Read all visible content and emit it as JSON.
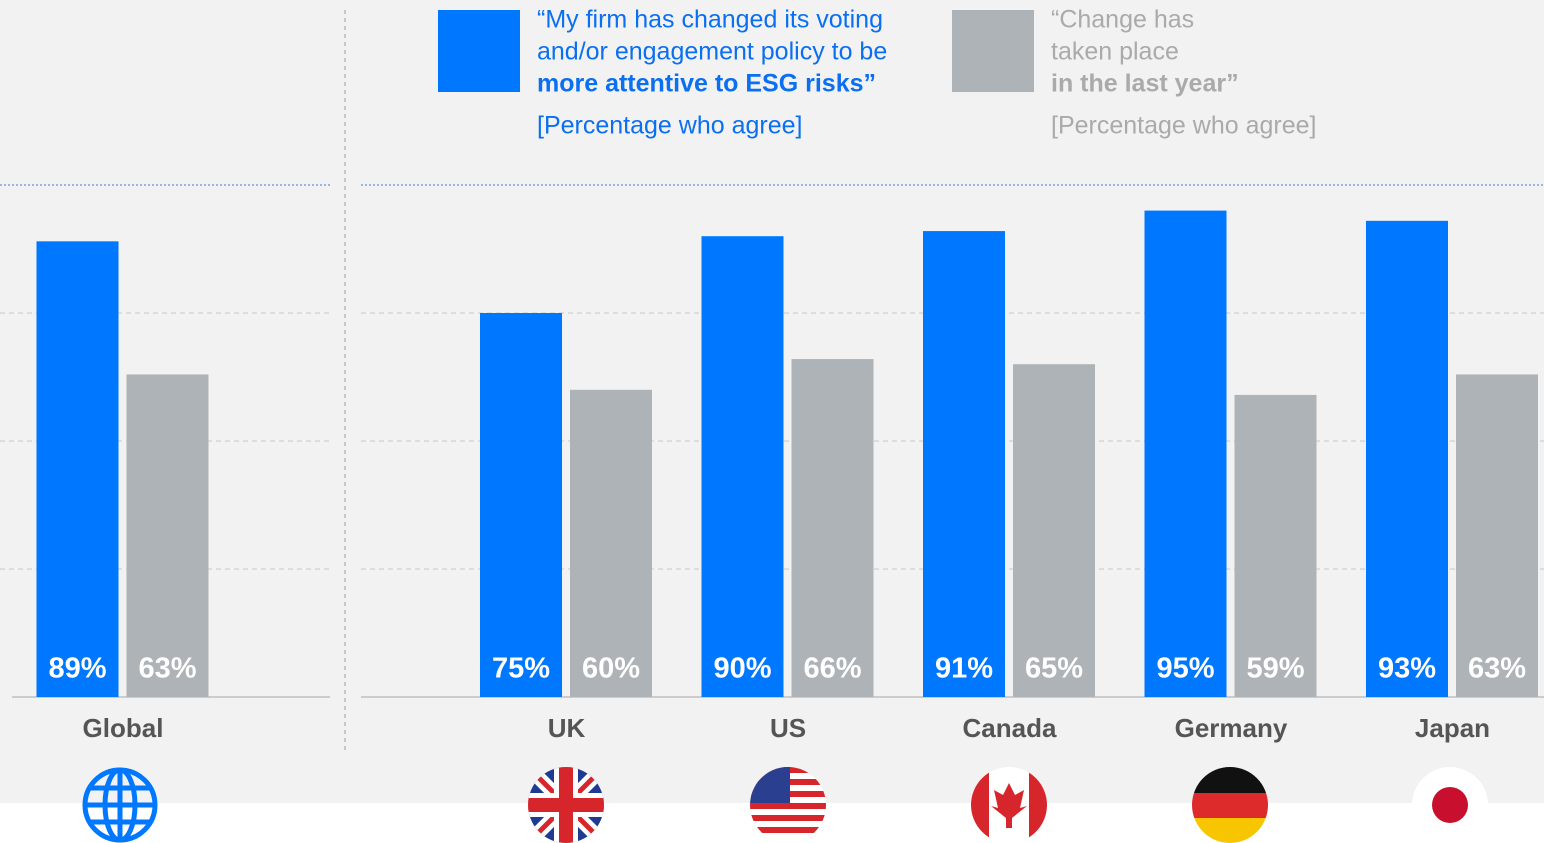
{
  "chart_data": {
    "type": "bar",
    "categories": [
      "Global",
      "UK",
      "US",
      "Canada",
      "Germany",
      "Japan"
    ],
    "series": [
      {
        "name": [
          "“My firm has changed its voting",
          "and/or engagement policy to be",
          "more attentive to ESG risks”"
        ],
        "note": "[Percentage who agree]",
        "color": "#0077ff",
        "values": [
          89,
          75,
          90,
          91,
          95,
          93
        ],
        "value_labels": [
          "89%",
          "75%",
          "90%",
          "91%",
          "95%",
          "93%"
        ]
      },
      {
        "name": [
          "“Change has",
          "taken place",
          "in the last year”"
        ],
        "note": "[Percentage who agree]",
        "color": "#adb3b6",
        "values": [
          63,
          60,
          66,
          65,
          59,
          63
        ],
        "value_labels": [
          "63%",
          "60%",
          "66%",
          "65%",
          "59%",
          "63%"
        ]
      }
    ],
    "ylim": [
      0,
      100
    ],
    "yticks": [
      0,
      25,
      50,
      75,
      100
    ],
    "grid": true
  }
}
